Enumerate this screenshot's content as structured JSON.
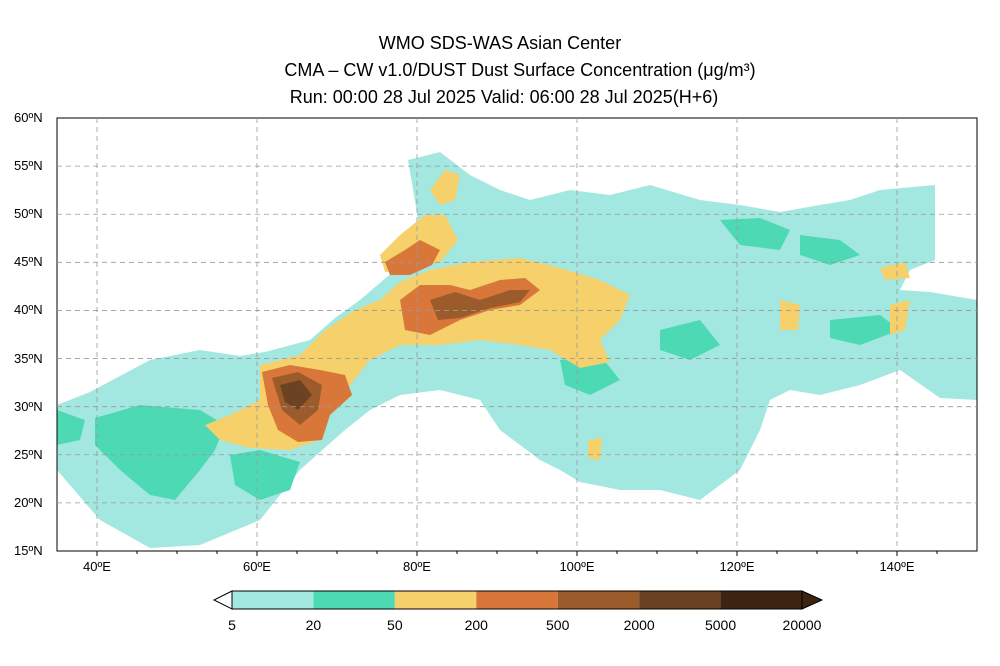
{
  "header": {
    "line1": "WMO SDS-WAS Asian Center",
    "line2": "CMA – CW v1.0/DUST Dust Surface Concentration (μg/m³)",
    "line3": "Run: 00:00 28 Jul 2025     Valid: 06:00 28 Jul 2025(H+6)"
  },
  "map": {
    "lat_labels": [
      "60ºN",
      "55ºN",
      "50ºN",
      "45ºN",
      "40ºN",
      "35ºN",
      "30ºN",
      "25ºN",
      "20ºN",
      "15ºN"
    ],
    "lon_labels": [
      "40ºE",
      "60ºE",
      "80ºE",
      "100ºE",
      "120ºE",
      "140ºE"
    ],
    "lat_range": [
      15,
      60
    ],
    "lon_range": [
      35,
      150
    ],
    "grid": true
  },
  "colorbar": {
    "labels": [
      "5",
      "20",
      "50",
      "200",
      "500",
      "2000",
      "5000",
      "20000"
    ],
    "colors": [
      "#a3e8e0",
      "#4dd9b4",
      "#f5d06b",
      "#d9773a",
      "#9b5b2a",
      "#6b4322",
      "#3b2412"
    ]
  }
}
